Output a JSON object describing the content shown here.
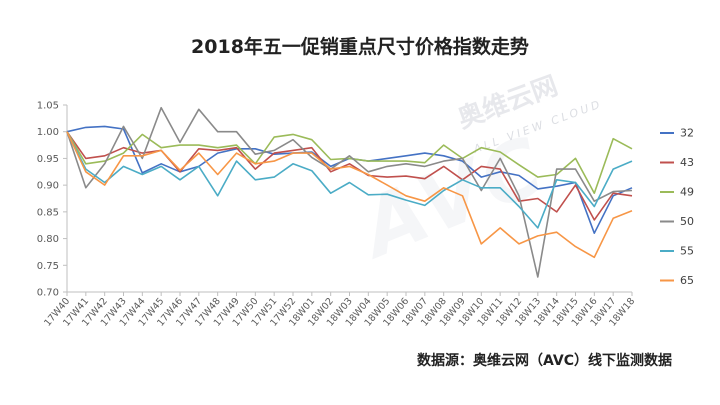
{
  "title": "2018年五一促销重点尺寸价格指数走势",
  "source": "数据源：奥维云网（AVC）线下监测数据",
  "watermark": {
    "logo": "AVC",
    "brand": "奥维云网",
    "sub": "ALL VIEW CLOUD"
  },
  "chart_data": {
    "type": "line",
    "title": "2018年五一促销重点尺寸价格指数走势",
    "xlabel": "",
    "ylabel": "",
    "ylim": [
      0.7,
      1.05
    ],
    "yticks": [
      "1.05",
      "1.00",
      "0.95",
      "0.90",
      "0.85",
      "0.80",
      "0.75",
      "0.70"
    ],
    "grid": false,
    "legend_position": "right",
    "x": [
      "17W40",
      "17W41",
      "17W42",
      "17W43",
      "17W44",
      "17W45",
      "17W46",
      "17W47",
      "17W48",
      "17W49",
      "17W50",
      "17W51",
      "17W52",
      "18W01",
      "18W02",
      "18W03",
      "18W04",
      "18W05",
      "18W06",
      "18W07",
      "18W08",
      "18W09",
      "18W10",
      "18W11",
      "18W12",
      "18W13",
      "18W14",
      "18W15",
      "18W16",
      "18W17",
      "18W18"
    ],
    "series": [
      {
        "name": "32",
        "color": "#4472c4",
        "values": [
          1.0,
          1.008,
          1.01,
          1.005,
          0.923,
          0.94,
          0.925,
          0.935,
          0.96,
          0.968,
          0.968,
          0.958,
          0.96,
          0.962,
          0.935,
          0.95,
          0.945,
          0.95,
          0.955,
          0.96,
          0.955,
          0.945,
          0.915,
          0.925,
          0.918,
          0.893,
          0.898,
          0.905,
          0.81,
          0.88,
          0.895
        ]
      },
      {
        "name": "43",
        "color": "#c0504d",
        "values": [
          1.0,
          0.95,
          0.955,
          0.97,
          0.96,
          0.965,
          0.925,
          0.968,
          0.965,
          0.97,
          0.93,
          0.96,
          0.965,
          0.97,
          0.925,
          0.94,
          0.918,
          0.915,
          0.917,
          0.912,
          0.935,
          0.91,
          0.935,
          0.93,
          0.87,
          0.875,
          0.85,
          0.9,
          0.835,
          0.885,
          0.88
        ]
      },
      {
        "name": "49",
        "color": "#9bbb59",
        "values": [
          1.0,
          0.94,
          0.945,
          0.96,
          0.995,
          0.97,
          0.975,
          0.975,
          0.97,
          0.975,
          0.94,
          0.99,
          0.995,
          0.985,
          0.948,
          0.95,
          0.945,
          0.945,
          0.945,
          0.942,
          0.975,
          0.95,
          0.97,
          0.962,
          0.938,
          0.915,
          0.92,
          0.95,
          0.885,
          0.987,
          0.968
        ]
      },
      {
        "name": "50",
        "color": "#8a8a8a",
        "values": [
          1.0,
          0.895,
          0.94,
          1.01,
          0.95,
          1.045,
          0.98,
          1.042,
          1.0,
          1.0,
          0.958,
          0.965,
          0.985,
          0.952,
          0.93,
          0.955,
          0.925,
          0.935,
          0.94,
          0.935,
          0.945,
          0.95,
          0.89,
          0.95,
          0.88,
          0.728,
          0.93,
          0.93,
          0.87,
          0.888,
          0.89
        ]
      },
      {
        "name": "55",
        "color": "#4bacc6",
        "values": [
          1.0,
          0.93,
          0.905,
          0.935,
          0.92,
          0.935,
          0.91,
          0.935,
          0.88,
          0.945,
          0.91,
          0.915,
          0.94,
          0.927,
          0.885,
          0.905,
          0.882,
          0.883,
          0.872,
          0.862,
          0.89,
          0.91,
          0.895,
          0.895,
          0.86,
          0.82,
          0.91,
          0.905,
          0.86,
          0.93,
          0.945
        ]
      },
      {
        "name": "65",
        "color": "#f79646",
        "values": [
          1.0,
          0.925,
          0.9,
          0.955,
          0.955,
          0.965,
          0.928,
          0.96,
          0.92,
          0.96,
          0.94,
          0.945,
          0.96,
          0.96,
          0.93,
          0.935,
          0.92,
          0.9,
          0.88,
          0.87,
          0.895,
          0.88,
          0.79,
          0.82,
          0.79,
          0.805,
          0.812,
          0.785,
          0.765,
          0.838,
          0.852
        ]
      }
    ]
  }
}
